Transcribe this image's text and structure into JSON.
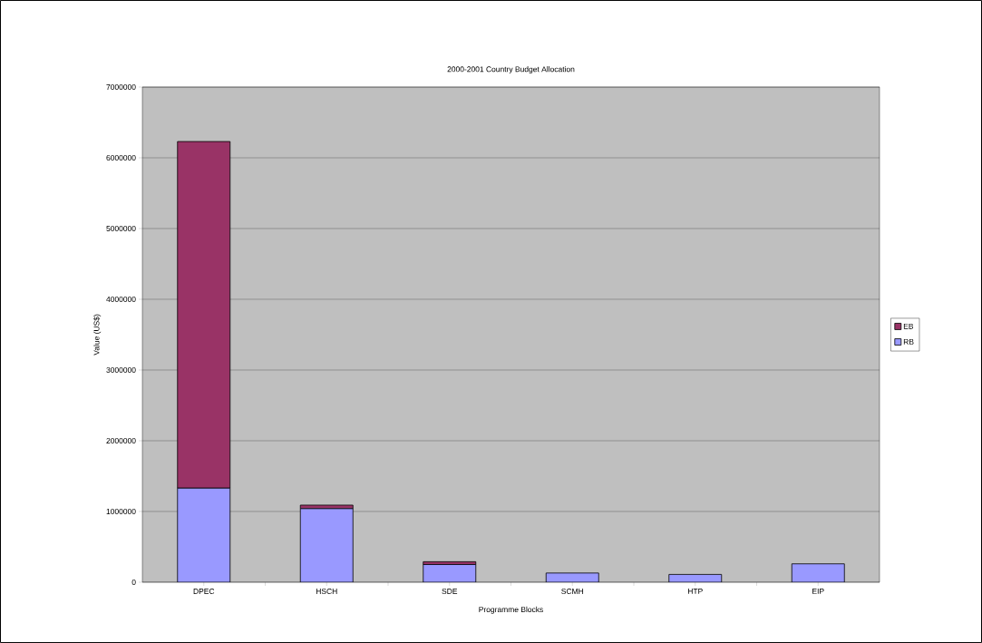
{
  "chart_data": {
    "type": "bar",
    "title": "2000-2001 Country Budget Allocation",
    "xlabel": "Programme Blocks",
    "ylabel": "Value (US$)",
    "categories": [
      "DPEC",
      "HSCH",
      "SDE",
      "SCMH",
      "HTP",
      "EIP"
    ],
    "series": [
      {
        "name": "RB",
        "color": "#9999ff",
        "values": [
          1330000,
          1040000,
          250000,
          130000,
          110000,
          260000
        ]
      },
      {
        "name": "EB",
        "color": "#993366",
        "values": [
          4900000,
          50000,
          40000,
          0,
          0,
          0
        ]
      }
    ],
    "stacked": true,
    "ylim": [
      0,
      7000000
    ],
    "yticks": [
      0,
      1000000,
      2000000,
      3000000,
      4000000,
      5000000,
      6000000,
      7000000
    ],
    "grid": "y",
    "legend": "right"
  }
}
